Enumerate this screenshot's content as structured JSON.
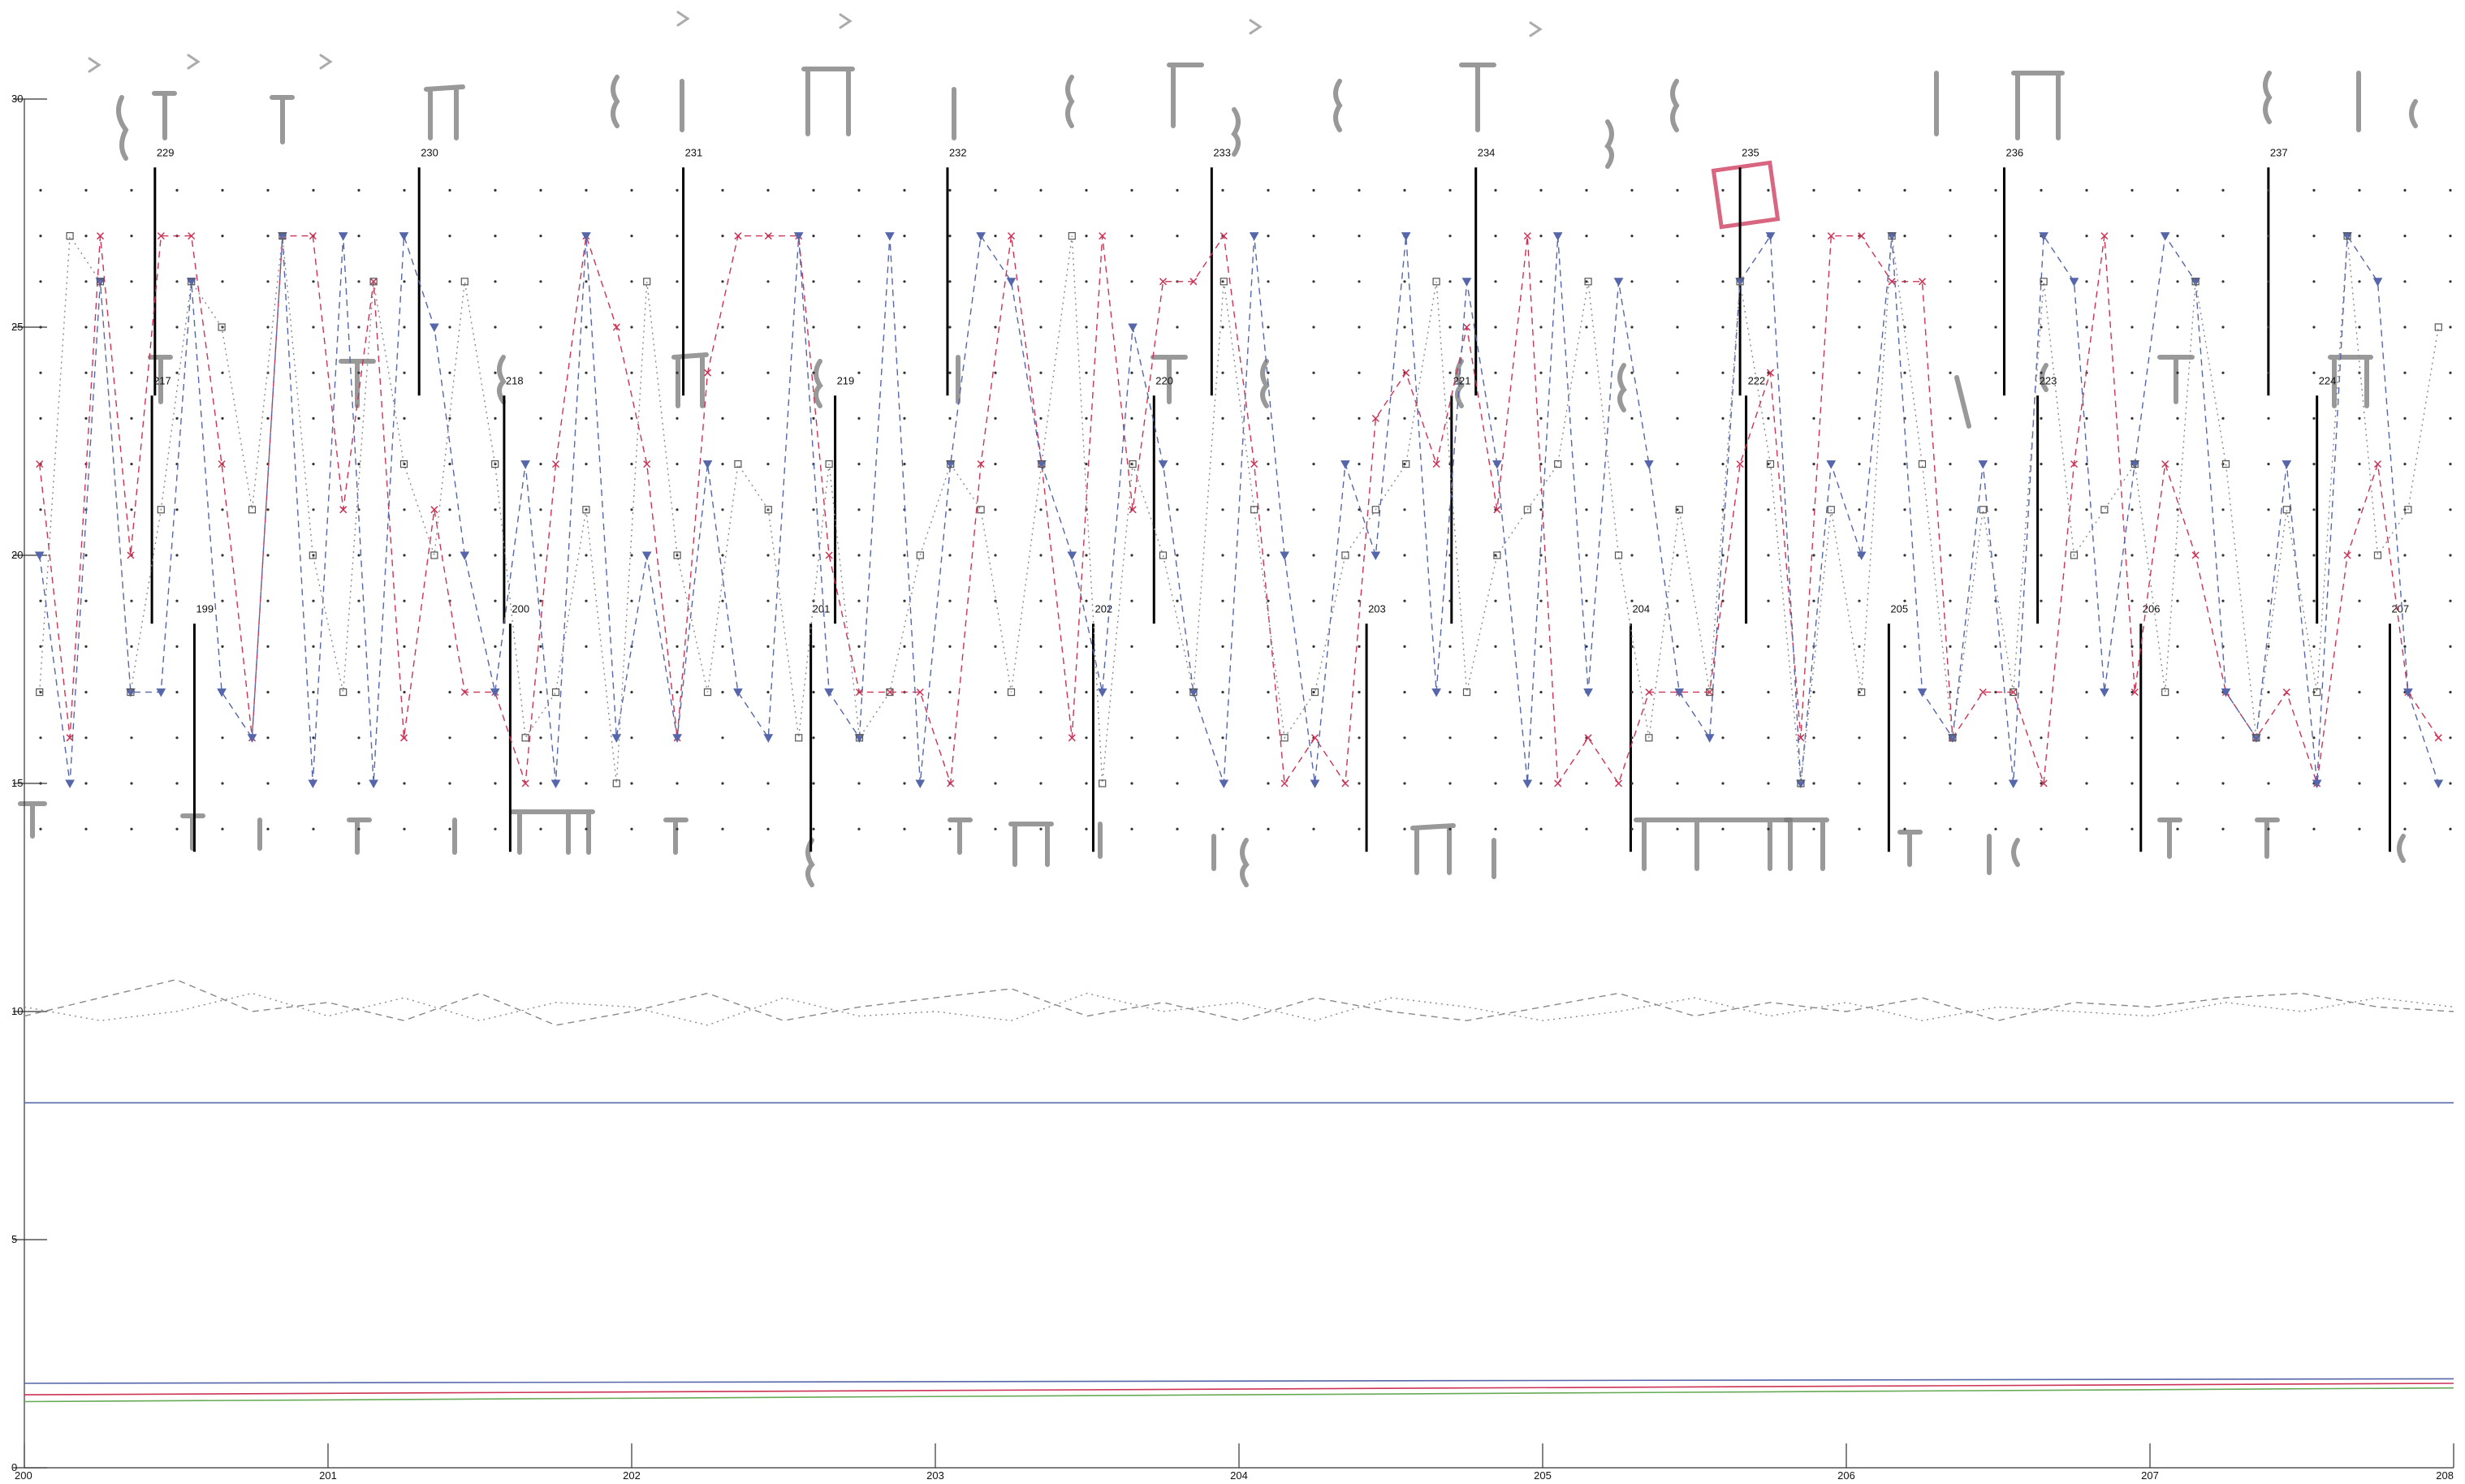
{
  "chart_data": {
    "type": "line",
    "title": "",
    "xlabel": "",
    "ylabel": "",
    "xlim": [
      200,
      208
    ],
    "ylim": [
      0,
      30
    ],
    "x_ticks": [
      200,
      201,
      202,
      203,
      204,
      205,
      206,
      207,
      208
    ],
    "x_tick_labels": [
      "200",
      "201",
      "202",
      "203",
      "204",
      "205",
      "206",
      "207",
      "208"
    ],
    "y_ticks": [
      0,
      5,
      10,
      15,
      20,
      25,
      30
    ],
    "y_tick_labels": [
      "0",
      "5",
      "10",
      "15",
      "20",
      "25",
      "30"
    ],
    "grid": false,
    "legend": "none",
    "colors": {
      "red_series": "#cc3355",
      "blue_series": "#5566aa",
      "gray_series": "#888888",
      "green_series": "#66aa55",
      "highlight_box": "#d04060"
    },
    "staff_rows": [
      {
        "y_center": 26,
        "measures": [
          {
            "label": "229",
            "x": 200.43
          },
          {
            "label": "230",
            "x": 201.3
          },
          {
            "label": "231",
            "x": 202.17
          },
          {
            "label": "232",
            "x": 203.04
          },
          {
            "label": "233",
            "x": 203.91
          },
          {
            "label": "234",
            "x": 204.78
          },
          {
            "label": "235",
            "x": 205.65
          },
          {
            "label": "236",
            "x": 206.52
          },
          {
            "label": "237",
            "x": 207.39
          }
        ]
      },
      {
        "y_center": 21,
        "measures": [
          {
            "label": "217",
            "x": 200.42
          },
          {
            "label": "218",
            "x": 201.58
          },
          {
            "label": "219",
            "x": 202.67
          },
          {
            "label": "220",
            "x": 203.72
          },
          {
            "label": "221",
            "x": 204.7
          },
          {
            "label": "222",
            "x": 205.67
          },
          {
            "label": "223",
            "x": 206.63
          },
          {
            "label": "224",
            "x": 207.55
          }
        ]
      },
      {
        "y_center": 16,
        "measures": [
          {
            "label": "199",
            "x": 200.56
          },
          {
            "label": "200",
            "x": 201.6
          },
          {
            "label": "201",
            "x": 202.59
          },
          {
            "label": "202",
            "x": 203.52
          },
          {
            "label": "203",
            "x": 204.42
          },
          {
            "label": "204",
            "x": 205.29
          },
          {
            "label": "205",
            "x": 206.14
          },
          {
            "label": "206",
            "x": 206.97
          },
          {
            "label": "207",
            "x": 207.79
          }
        ]
      }
    ],
    "series": [
      {
        "color_key": "red_series",
        "style": "dashed",
        "x": [
          200.05,
          200.15,
          200.25,
          200.35,
          200.45,
          200.55,
          200.65,
          200.75,
          200.85,
          200.95,
          201.05,
          201.15,
          201.25,
          201.35,
          201.45,
          201.55,
          201.65,
          201.75,
          201.85,
          201.95,
          202.05,
          202.15,
          202.25,
          202.35,
          202.45,
          202.55,
          202.65,
          202.75,
          202.85,
          202.95,
          203.05,
          203.15,
          203.25,
          203.35,
          203.45,
          203.55,
          203.65,
          203.75,
          203.85,
          203.95,
          204.05,
          204.15,
          204.25,
          204.35,
          204.45,
          204.55,
          204.65,
          204.75,
          204.85,
          204.95,
          205.05,
          205.15,
          205.25,
          205.35,
          205.45,
          205.55,
          205.65,
          205.75,
          205.85,
          205.95,
          206.05,
          206.15,
          206.25,
          206.35,
          206.45,
          206.55,
          206.65,
          206.75,
          206.85,
          206.95,
          207.05,
          207.15,
          207.25,
          207.35,
          207.45,
          207.55,
          207.65,
          207.75,
          207.85,
          207.95
        ],
        "values": [
          22,
          16,
          27,
          20,
          27,
          27,
          22,
          16,
          27,
          27,
          21,
          26,
          16,
          21,
          17,
          17,
          15,
          22,
          27,
          25,
          22,
          16,
          24,
          27,
          27,
          27,
          20,
          17,
          17,
          17,
          15,
          22,
          27,
          22,
          16,
          27,
          21,
          26,
          26,
          27,
          22,
          15,
          16,
          15,
          23,
          24,
          22,
          25,
          21,
          27,
          15,
          16,
          15,
          17,
          17,
          17,
          22,
          24,
          16,
          27,
          27,
          26,
          26,
          16,
          17,
          17,
          15,
          22,
          27,
          17,
          22,
          20,
          17,
          16,
          17,
          15,
          20,
          22,
          17,
          16
        ]
      },
      {
        "color_key": "blue_series",
        "style": "dashed",
        "x": [
          200.05,
          200.15,
          200.25,
          200.35,
          200.45,
          200.55,
          200.65,
          200.75,
          200.85,
          200.95,
          201.05,
          201.15,
          201.25,
          201.35,
          201.45,
          201.55,
          201.65,
          201.75,
          201.85,
          201.95,
          202.05,
          202.15,
          202.25,
          202.35,
          202.45,
          202.55,
          202.65,
          202.75,
          202.85,
          202.95,
          203.05,
          203.15,
          203.25,
          203.35,
          203.45,
          203.55,
          203.65,
          203.75,
          203.85,
          203.95,
          204.05,
          204.15,
          204.25,
          204.35,
          204.45,
          204.55,
          204.65,
          204.75,
          204.85,
          204.95,
          205.05,
          205.15,
          205.25,
          205.35,
          205.45,
          205.55,
          205.65,
          205.75,
          205.85,
          205.95,
          206.05,
          206.15,
          206.25,
          206.35,
          206.45,
          206.55,
          206.65,
          206.75,
          206.85,
          206.95,
          207.05,
          207.15,
          207.25,
          207.35,
          207.45,
          207.55,
          207.65,
          207.75,
          207.85,
          207.95
        ],
        "values": [
          20,
          15,
          26,
          17,
          17,
          26,
          17,
          16,
          27,
          15,
          27,
          15,
          27,
          25,
          20,
          17,
          22,
          15,
          27,
          16,
          20,
          16,
          22,
          17,
          16,
          27,
          17,
          16,
          27,
          15,
          22,
          27,
          26,
          22,
          20,
          17,
          25,
          22,
          17,
          15,
          27,
          20,
          15,
          22,
          20,
          27,
          17,
          26,
          22,
          15,
          27,
          17,
          26,
          22,
          17,
          16,
          26,
          27,
          15,
          22,
          20,
          27,
          17,
          16,
          22,
          15,
          27,
          26,
          17,
          22,
          27,
          26,
          17,
          16,
          22,
          15,
          27,
          26,
          17,
          15
        ]
      },
      {
        "color_key": "gray_series",
        "style": "dotted",
        "x": [
          200.05,
          200.15,
          200.25,
          200.35,
          200.45,
          200.55,
          200.65,
          200.75,
          200.85,
          200.95,
          201.05,
          201.15,
          201.25,
          201.35,
          201.45,
          201.55,
          201.65,
          201.75,
          201.85,
          201.95,
          202.05,
          202.15,
          202.25,
          202.35,
          202.45,
          202.55,
          202.65,
          202.75,
          202.85,
          202.95,
          203.05,
          203.15,
          203.25,
          203.35,
          203.45,
          203.55,
          203.65,
          203.75,
          203.85,
          203.95,
          204.05,
          204.15,
          204.25,
          204.35,
          204.45,
          204.55,
          204.65,
          204.75,
          204.85,
          204.95,
          205.05,
          205.15,
          205.25,
          205.35,
          205.45,
          205.55,
          205.65,
          205.75,
          205.85,
          205.95,
          206.05,
          206.15,
          206.25,
          206.35,
          206.45,
          206.55,
          206.65,
          206.75,
          206.85,
          206.95,
          207.05,
          207.15,
          207.25,
          207.35,
          207.45,
          207.55,
          207.65,
          207.75,
          207.85,
          207.95
        ],
        "values": [
          17,
          27,
          26,
          17,
          21,
          26,
          25,
          21,
          27,
          20,
          17,
          26,
          22,
          20,
          26,
          22,
          16,
          17,
          21,
          15,
          26,
          20,
          17,
          22,
          21,
          16,
          22,
          16,
          17,
          20,
          22,
          21,
          17,
          22,
          27,
          15,
          22,
          20,
          17,
          26,
          21,
          16,
          17,
          20,
          21,
          22,
          26,
          17,
          20,
          21,
          22,
          26,
          20,
          16,
          21,
          17,
          26,
          22,
          15,
          21,
          17,
          27,
          22,
          16,
          21,
          17,
          26,
          20,
          21,
          22,
          17,
          26,
          22,
          16,
          21,
          17,
          27,
          20,
          21,
          25
        ]
      },
      {
        "color_key": "gray_series",
        "style": "dashed-low",
        "x": [
          200.0,
          200.25,
          200.5,
          200.75,
          201.0,
          201.25,
          201.5,
          201.75,
          202.0,
          202.25,
          202.5,
          202.75,
          203.0,
          203.25,
          203.5,
          203.75,
          204.0,
          204.25,
          204.5,
          204.75,
          205.0,
          205.25,
          205.5,
          205.75,
          206.0,
          206.25,
          206.5,
          206.75,
          207.0,
          207.25,
          207.5,
          207.75,
          208.0
        ],
        "values": [
          9.9,
          10.3,
          10.7,
          10.0,
          10.2,
          9.8,
          10.4,
          9.7,
          10.0,
          10.4,
          9.8,
          10.1,
          10.3,
          10.5,
          9.9,
          10.2,
          9.8,
          10.3,
          10.0,
          9.8,
          10.1,
          10.4,
          9.9,
          10.2,
          10.0,
          10.3,
          9.8,
          10.2,
          10.1,
          10.3,
          10.4,
          10.1,
          10.0
        ]
      },
      {
        "color_key": "gray_series",
        "style": "dotted-low",
        "x": [
          200.0,
          200.25,
          200.5,
          200.75,
          201.0,
          201.25,
          201.5,
          201.75,
          202.0,
          202.25,
          202.5,
          202.75,
          203.0,
          203.25,
          203.5,
          203.75,
          204.0,
          204.25,
          204.5,
          204.75,
          205.0,
          205.25,
          205.5,
          205.75,
          206.0,
          206.25,
          206.5,
          206.75,
          207.0,
          207.25,
          207.5,
          207.75,
          208.0
        ],
        "values": [
          10.1,
          9.8,
          10.0,
          10.4,
          9.9,
          10.3,
          9.8,
          10.2,
          10.1,
          9.7,
          10.3,
          9.9,
          10.0,
          9.8,
          10.4,
          10.0,
          10.2,
          9.8,
          10.3,
          10.1,
          9.8,
          10.0,
          10.3,
          9.9,
          10.2,
          9.8,
          10.1,
          10.0,
          9.9,
          10.2,
          10.0,
          10.3,
          10.1
        ]
      },
      {
        "color_key": "blue_series",
        "style": "solid",
        "x": [
          200,
          208
        ],
        "values": [
          8.0,
          8.0
        ]
      },
      {
        "color_key": "blue_series",
        "style": "solid",
        "x": [
          200,
          208
        ],
        "values": [
          1.85,
          1.95
        ]
      },
      {
        "color_key": "red_series",
        "style": "solid",
        "x": [
          200,
          208
        ],
        "values": [
          1.6,
          1.85
        ]
      },
      {
        "color_key": "green_series",
        "style": "solid",
        "x": [
          200,
          208
        ],
        "values": [
          1.45,
          1.75
        ]
      }
    ]
  }
}
